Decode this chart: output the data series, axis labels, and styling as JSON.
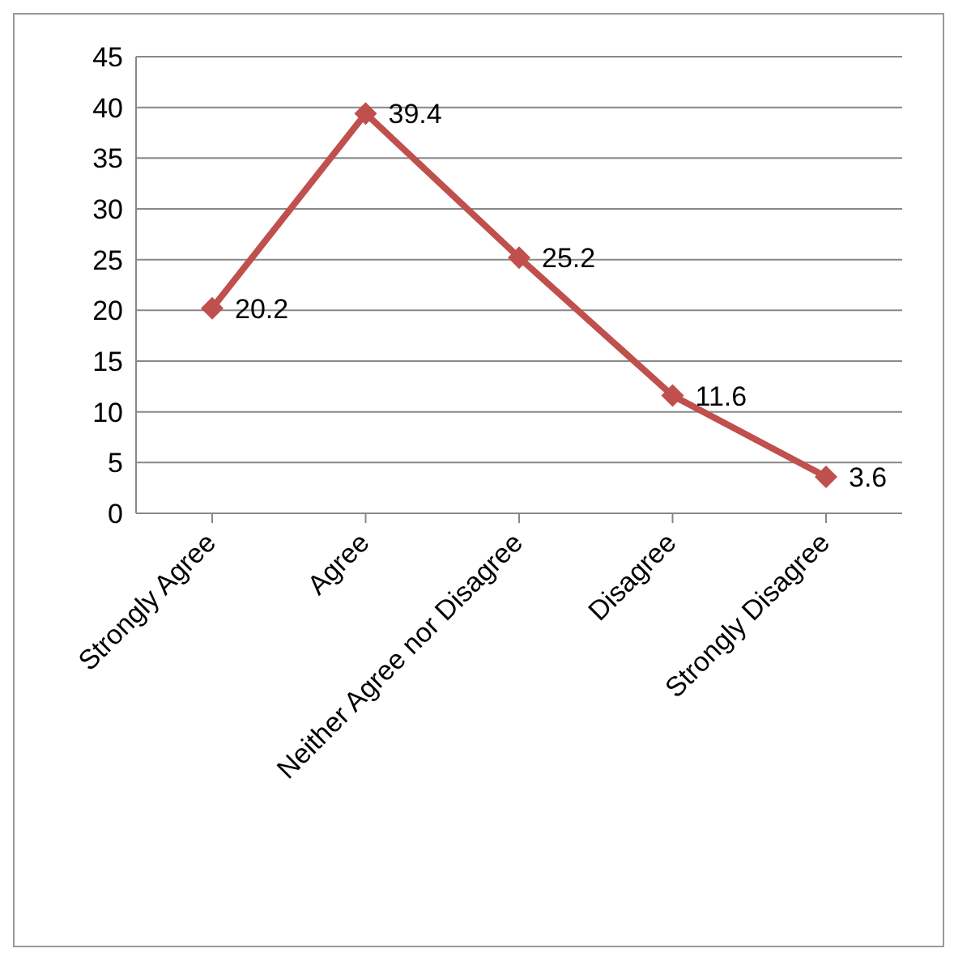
{
  "chart_data": {
    "type": "line",
    "categories": [
      "Strongly Agree",
      "Agree",
      "Neither Agree nor Disagree",
      "Disagree",
      "Strongly Disagree"
    ],
    "series": [
      {
        "color": "#c0504d",
        "values": [
          20.2,
          39.4,
          25.2,
          11.6,
          3.6
        ]
      }
    ],
    "ylim": [
      0,
      45
    ],
    "yticks": [
      0,
      5,
      10,
      15,
      20,
      25,
      30,
      35,
      40,
      45
    ],
    "grid": "y",
    "marker": "diamond",
    "line_style": "solid",
    "data_labels": true
  }
}
